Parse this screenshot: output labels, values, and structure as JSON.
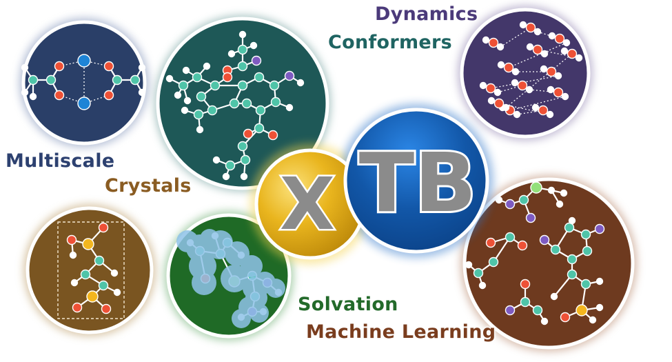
{
  "logo": {
    "x_letter": "X",
    "tb_letters": "TB"
  },
  "labels": {
    "dynamics": "Dynamics",
    "conformers": "Conformers",
    "multiscale": "Multiscale",
    "crystals": "Crystals",
    "solvation": "Solvation",
    "machine_learning": "Machine Learning"
  },
  "colors": {
    "multiscale": "#2a3f68",
    "conformers": "#1e5857",
    "dynamics": "#43376a",
    "crystals": "#7a5521",
    "solvation": "#1f6a26",
    "machine_learning": "#6e3a1f",
    "x_gold": "#e4b21a",
    "tb_blue": "#1155a6",
    "atom_teal": "#4fc4a8",
    "atom_red": "#ee5136",
    "atom_white": "#ffffff",
    "atom_purple": "#7e5bc1",
    "atom_gold": "#f3b61f",
    "atom_blue": "#1e84d6",
    "atom_green": "#93e07a"
  }
}
